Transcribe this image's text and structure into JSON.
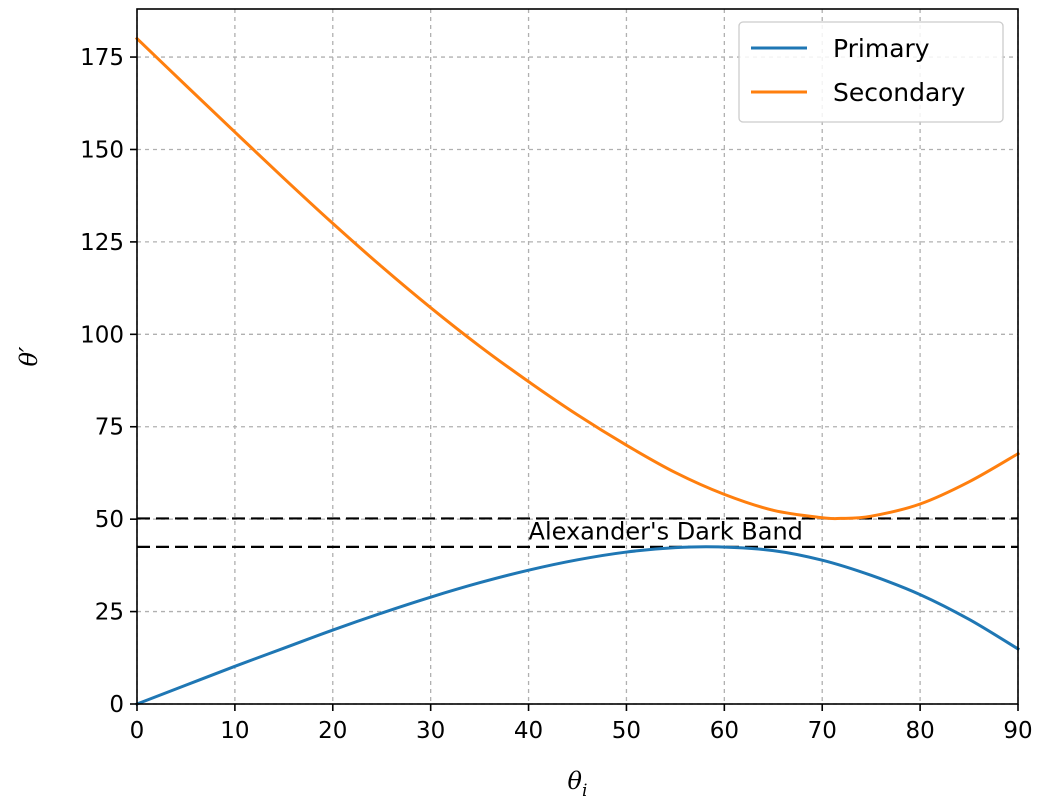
{
  "chart_data": {
    "type": "line",
    "title": "",
    "xlabel": "θ_i",
    "ylabel": "θ′",
    "xlim": [
      0,
      90
    ],
    "ylim": [
      0,
      188
    ],
    "xticks": [
      0,
      10,
      20,
      30,
      40,
      50,
      60,
      70,
      80,
      90
    ],
    "yticks": [
      0,
      25,
      50,
      75,
      100,
      125,
      150,
      175
    ],
    "grid": true,
    "legend_position": "top-right",
    "series": [
      {
        "name": "Primary",
        "color": "#1f77b4",
        "x": [
          0,
          5,
          10,
          15,
          20,
          25,
          30,
          35,
          40,
          45,
          50,
          55,
          59.4,
          65,
          70,
          75,
          80,
          85,
          90
        ],
        "y": [
          0,
          5.1,
          10.2,
          15.1,
          20.0,
          24.6,
          28.9,
          32.8,
          36.2,
          39.0,
          41.1,
          42.3,
          42.5,
          41.5,
          38.9,
          34.8,
          29.6,
          22.9,
          14.9
        ]
      },
      {
        "name": "Secondary",
        "color": "#ff7f0e",
        "x": [
          0,
          5,
          10,
          15,
          20,
          25,
          30,
          35,
          40,
          45,
          50,
          55,
          60,
          65,
          70,
          71.9,
          75,
          80,
          85,
          90
        ],
        "y": [
          180,
          167.3,
          154.7,
          142.2,
          130.0,
          118.3,
          107.2,
          96.8,
          87.2,
          78.2,
          70.0,
          62.6,
          56.7,
          52.4,
          50.4,
          50.2,
          50.8,
          54.1,
          60.1,
          67.7
        ]
      }
    ],
    "reference_lines": [
      {
        "y": 50.2,
        "style": "dashed",
        "color": "#000000"
      },
      {
        "y": 42.5,
        "style": "dashed",
        "color": "#000000"
      }
    ],
    "annotations": [
      {
        "text": "Alexander's Dark Band",
        "x": 40,
        "y": 44.5
      }
    ]
  }
}
